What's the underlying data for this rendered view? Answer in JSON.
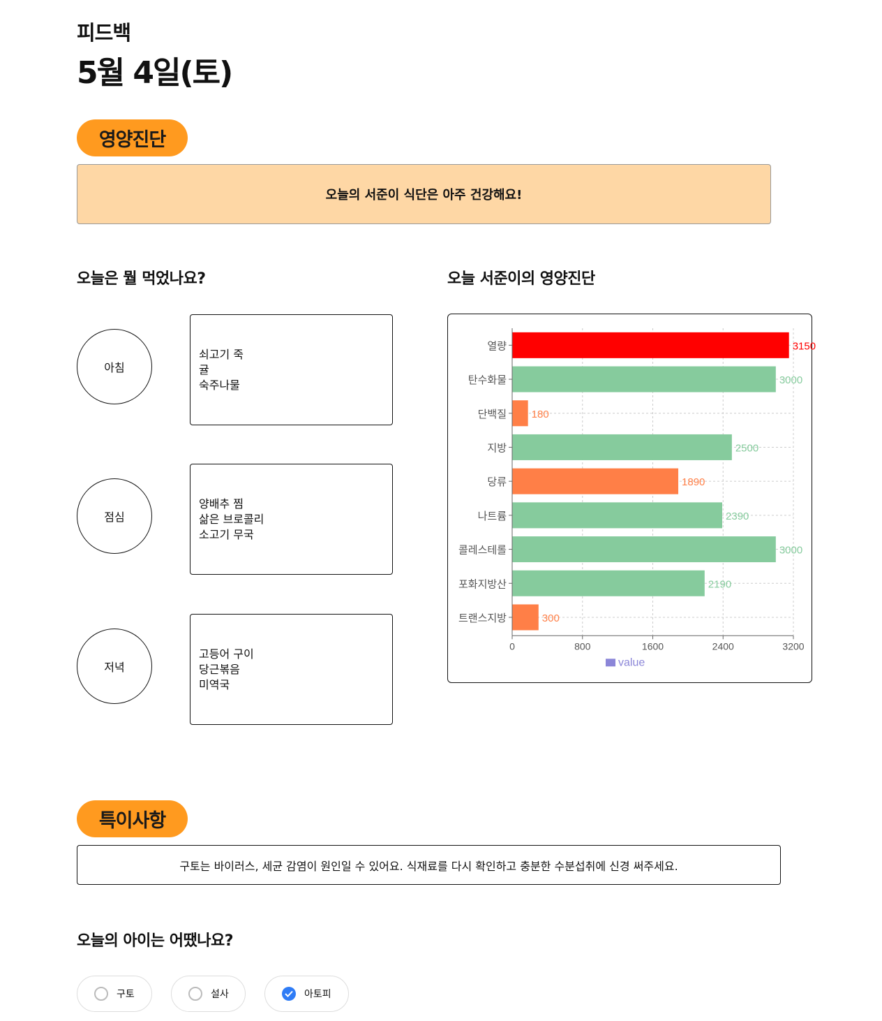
{
  "header": {
    "label": "피드백",
    "date": "5월 4일(토)"
  },
  "nutrition": {
    "badge": "영양진단",
    "summary": "오늘의 서준이 식단은 아주 건강해요!",
    "colors": {
      "over": "#ff0000",
      "ok": "#86cb9d",
      "low": "#ff7f47"
    }
  },
  "meals": {
    "heading": "오늘은 뭘 먹었나요?",
    "items": [
      {
        "name": "아침",
        "foods": [
          "쇠고기 죽",
          "귤",
          "숙주나물"
        ]
      },
      {
        "name": "점심",
        "foods": [
          "양배추 찜",
          "삶은 브로콜리",
          "소고기 무국"
        ]
      },
      {
        "name": "저녁",
        "foods": [
          "고등어 구이",
          "당근볶음",
          "미역국"
        ]
      }
    ]
  },
  "chart_heading": "오늘 서준이의 영양진단",
  "chart_data": {
    "type": "bar",
    "orientation": "horizontal",
    "categories": [
      "열량",
      "탄수화물",
      "단백질",
      "지방",
      "당류",
      "나트륨",
      "콜레스테롤",
      "포화지방산",
      "트랜스지방"
    ],
    "values": [
      3150,
      3000,
      180,
      2500,
      1890,
      2390,
      3000,
      2190,
      300
    ],
    "value_labels": [
      "3150",
      "3000",
      "180",
      "2500",
      "1890",
      "2390",
      "3000",
      "2190",
      "300"
    ],
    "bar_status": [
      "over",
      "ok",
      "low",
      "ok",
      "low",
      "ok",
      "ok",
      "ok",
      "low"
    ],
    "xlim": [
      0,
      3200
    ],
    "xticks": [
      "0",
      "800",
      "1600",
      "2400",
      "3200"
    ],
    "grid": true,
    "legend": {
      "label": "value",
      "color": "#8b86d8",
      "position": "bottom"
    }
  },
  "notes": {
    "badge": "특이사항",
    "text": "구토는 바이러스, 세균 감염이 원인일 수 있어요. 식재료를 다시 확인하고 충분한 수분섭취에 신경 써주세요."
  },
  "condition": {
    "heading": "오늘의 아이는 어땠나요?",
    "options": [
      {
        "label": "구토",
        "checked": false
      },
      {
        "label": "설사",
        "checked": false
      },
      {
        "label": "아토피",
        "checked": true
      }
    ]
  }
}
